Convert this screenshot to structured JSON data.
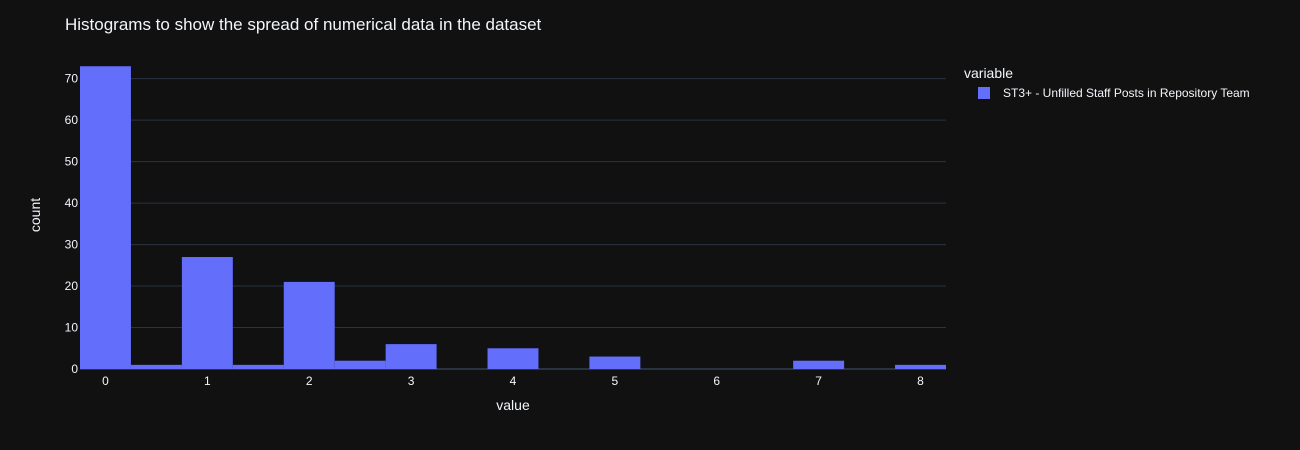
{
  "chart_data": {
    "type": "bar",
    "title": "Histograms to show the spread of numerical data in the dataset",
    "xlabel": "value",
    "ylabel": "count",
    "xlim": [
      -0.25,
      8.25
    ],
    "ylim": [
      0,
      74.5
    ],
    "bin_width": 0.5,
    "x_ticks": [
      0,
      1,
      2,
      3,
      4,
      5,
      6,
      7,
      8
    ],
    "y_ticks": [
      0,
      10,
      20,
      30,
      40,
      50,
      60,
      70
    ],
    "grid": true,
    "legend": {
      "title": "variable",
      "placement": "top-right outside"
    },
    "series": [
      {
        "name": "ST3+ - Unfilled Staff Posts in Repository Team",
        "color": "#636efa",
        "bins": [
          {
            "x0": -0.25,
            "x1": 0.25,
            "count": 73
          },
          {
            "x0": 0.25,
            "x1": 0.75,
            "count": 1
          },
          {
            "x0": 0.75,
            "x1": 1.25,
            "count": 27
          },
          {
            "x0": 1.25,
            "x1": 1.75,
            "count": 1
          },
          {
            "x0": 1.75,
            "x1": 2.25,
            "count": 21
          },
          {
            "x0": 2.25,
            "x1": 2.75,
            "count": 2
          },
          {
            "x0": 2.75,
            "x1": 3.25,
            "count": 6
          },
          {
            "x0": 3.25,
            "x1": 3.75,
            "count": 0
          },
          {
            "x0": 3.75,
            "x1": 4.25,
            "count": 5
          },
          {
            "x0": 4.25,
            "x1": 4.75,
            "count": 0
          },
          {
            "x0": 4.75,
            "x1": 5.25,
            "count": 3
          },
          {
            "x0": 5.25,
            "x1": 5.75,
            "count": 0
          },
          {
            "x0": 5.75,
            "x1": 6.25,
            "count": 0
          },
          {
            "x0": 6.25,
            "x1": 6.75,
            "count": 0
          },
          {
            "x0": 6.75,
            "x1": 7.25,
            "count": 2
          },
          {
            "x0": 7.25,
            "x1": 7.75,
            "count": 0
          },
          {
            "x0": 7.75,
            "x1": 8.25,
            "count": 1
          }
        ]
      }
    ]
  },
  "colors": {
    "background": "#111111",
    "gridline": "#283442",
    "text": "#f2f5fa",
    "bar": "#636efa"
  }
}
